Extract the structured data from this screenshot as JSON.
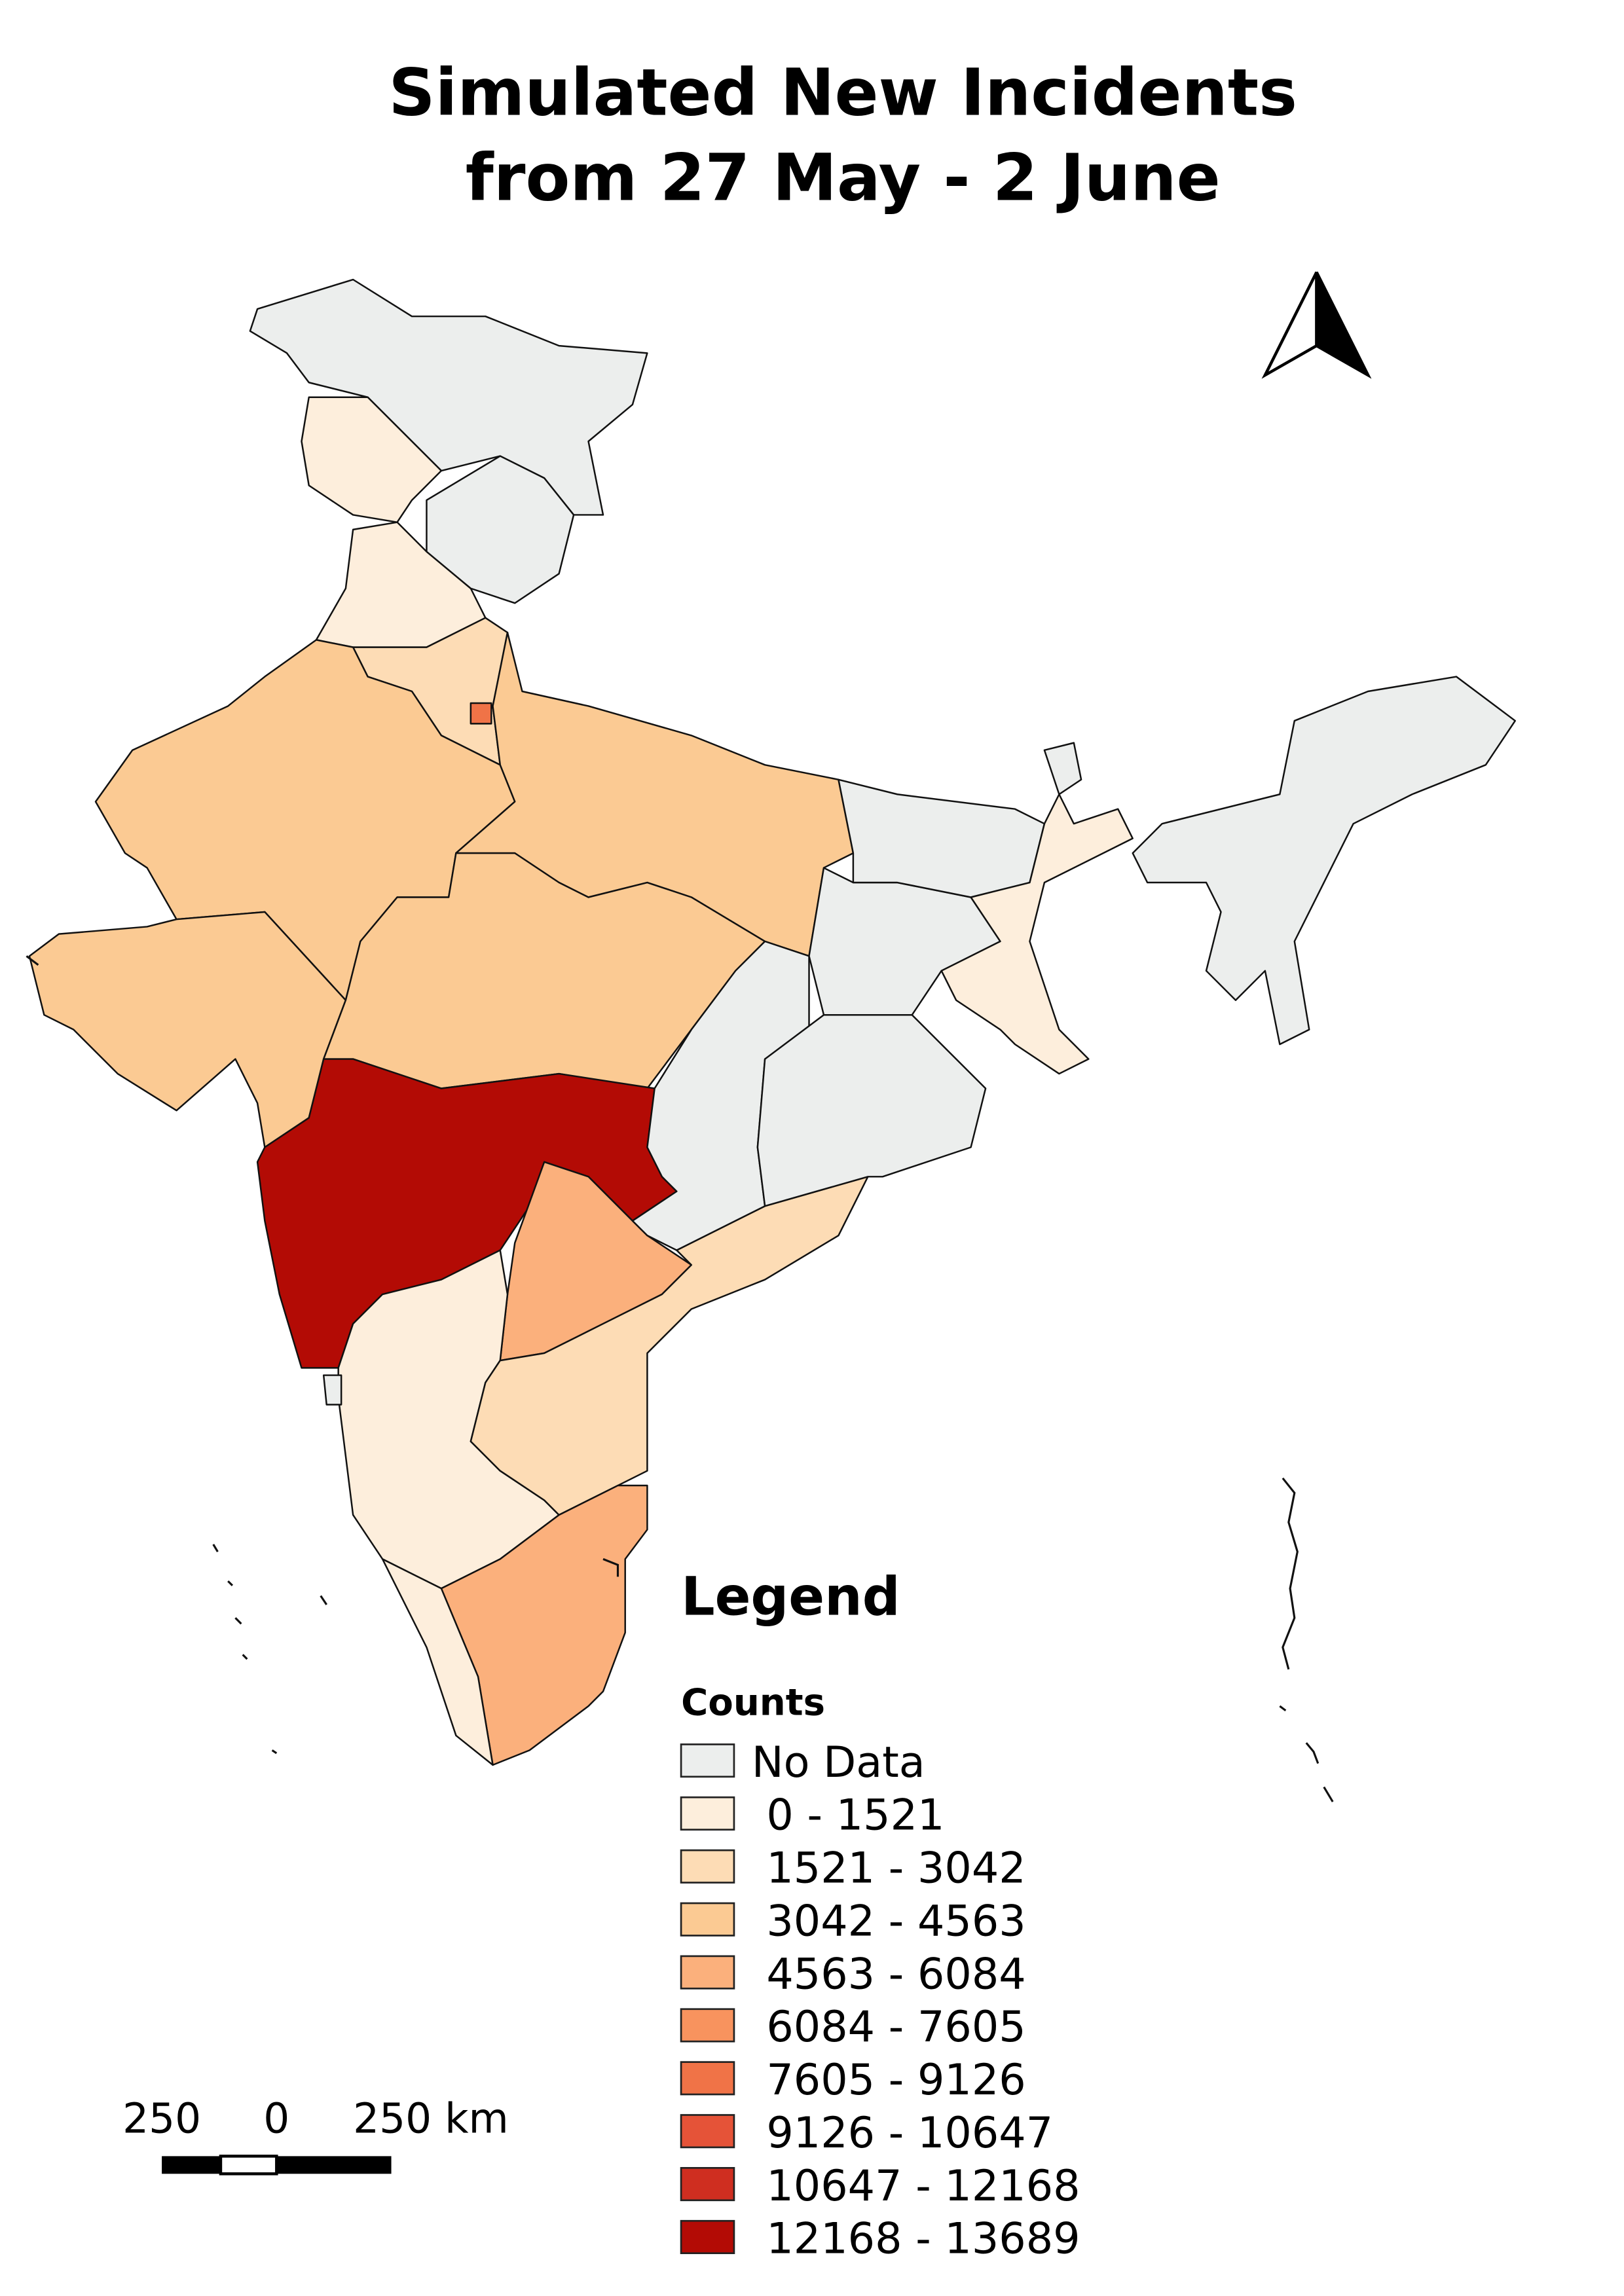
{
  "title": [
    "Simulated New Incidents",
    "from 27 May - 2 June"
  ],
  "legend": {
    "title": "Legend",
    "subtitle": "Counts",
    "items": [
      {
        "label": "No Data",
        "color": "#eceeed"
      },
      {
        "label": "0 - 1521",
        "color": "#fdeedc"
      },
      {
        "label": "1521 - 3042",
        "color": "#fddcb5"
      },
      {
        "label": "3042 - 4563",
        "color": "#fbca93"
      },
      {
        "label": "4563 - 6084",
        "color": "#fbb07c"
      },
      {
        "label": "6084 - 7605",
        "color": "#f8935e"
      },
      {
        "label": "7605 - 9126",
        "color": "#f07347"
      },
      {
        "label": "9126 - 10647",
        "color": "#e55338"
      },
      {
        "label": "10647 - 12168",
        "color": "#cf2e20"
      },
      {
        "label": "12168 - 13689",
        "color": "#b30b05"
      }
    ]
  },
  "scale_bar": {
    "labels": [
      "250",
      "0",
      "250 km"
    ]
  }
}
